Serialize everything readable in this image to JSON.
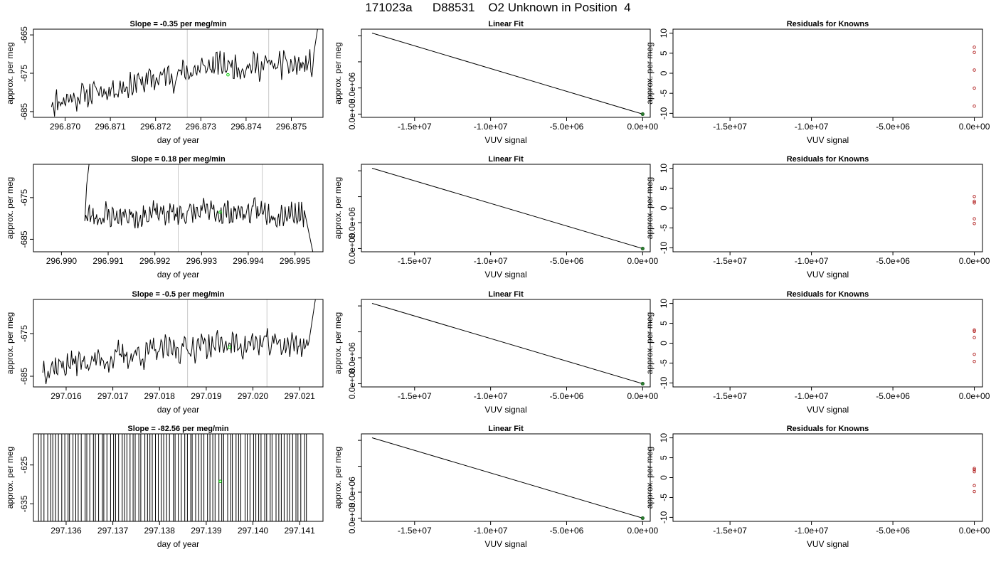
{
  "title": "171023a      D88531    O2 Unknown in Position  4",
  "colors": {
    "trace": "#000000",
    "marker": "#00cc00",
    "vline": "#c8c8c8",
    "fitline": "#000000",
    "fitpoint": "#2e7d32",
    "residual": "#b22222"
  },
  "chart_data": [
    {
      "type": "line",
      "title": "Slope =  -0.35  per meg/min",
      "xlabel": "day of year",
      "ylabel": "approx. per meg",
      "xlim": [
        296.8693,
        296.8757
      ],
      "ylim": [
        -686.5,
        -663.5
      ],
      "xticks": [
        296.87,
        296.871,
        296.872,
        296.873,
        296.874,
        296.875
      ],
      "xtick_labels": [
        "296.870",
        "296.871",
        "296.872",
        "296.873",
        "296.874",
        "296.875"
      ],
      "yticks": [
        -665,
        -675,
        -685
      ],
      "ytick_labels": [
        "-665",
        "-675",
        "-685"
      ],
      "vlines": [
        296.8727,
        296.8745
      ],
      "marker": {
        "x": 296.8736,
        "y": -675.4
      },
      "trace": {
        "x_start": 296.8697,
        "x_end": 296.8755,
        "y_from": -682.5,
        "y_to": -673,
        "noise": 2.5,
        "seed": 11,
        "n": 260,
        "tail_from": 296.8753,
        "tail_to": -662
      }
    },
    {
      "type": "line",
      "title": "Linear Fit",
      "xlabel": "VUV signal",
      "ylabel": "approx. per meg",
      "xlim": [
        -18500000,
        500000
      ],
      "ylim": [
        -1000000,
        26000000
      ],
      "xticks": [
        -15000000,
        -10000000,
        -5000000,
        0
      ],
      "xtick_labels": [
        "-1.5e+07",
        "-1.0e+07",
        "-5.0e+06",
        "0.0e+00"
      ],
      "yticks": [
        0,
        8000000,
        16000000,
        24000000
      ],
      "ytick_labels": [
        "0.0e+00",
        "8.0e+06",
        "",
        ""
      ],
      "line": {
        "x": [
          -17800000,
          0
        ],
        "y": [
          24800000,
          0
        ]
      },
      "point": {
        "x": 0,
        "y": 0
      }
    },
    {
      "type": "scatter",
      "title": "Residuals for Knowns",
      "xlabel": "VUV signal",
      "ylabel": "",
      "xlim": [
        -18500000,
        500000
      ],
      "ylim": [
        -11,
        11
      ],
      "xticks": [
        -15000000,
        -10000000,
        -5000000,
        0
      ],
      "xtick_labels": [
        "-1.5e+07",
        "-1.0e+07",
        "-5.0e+06",
        "0.0e+00"
      ],
      "yticks": [
        10,
        5,
        0,
        -5,
        -10
      ],
      "ytick_labels": [
        "10",
        "5",
        "0",
        "-5",
        "-10"
      ],
      "x": [
        0,
        0,
        0,
        0,
        0
      ],
      "y": [
        6.5,
        5.2,
        0.8,
        -3.7,
        -8.2
      ]
    },
    {
      "type": "line",
      "title": "Slope =  0.18  per meg/min",
      "xlabel": "day of year",
      "ylabel": "approx. per meg",
      "xlim": [
        296.9894,
        296.9956
      ],
      "ylim": [
        -688,
        -667
      ],
      "xticks": [
        296.99,
        296.991,
        296.992,
        296.993,
        296.994,
        296.995
      ],
      "xtick_labels": [
        "296.990",
        "296.991",
        "296.992",
        "296.993",
        "296.994",
        "296.995"
      ],
      "yticks": [
        -675,
        -685
      ],
      "ytick_labels": [
        "-675",
        "-685"
      ],
      "vlines": [
        296.9925,
        296.9943
      ],
      "marker": {
        "x": 296.9934,
        "y": -678.5
      },
      "trace": {
        "x_start": 296.9905,
        "x_end": 296.9952,
        "y_from": -679.5,
        "y_to": -678.5,
        "noise": 2.2,
        "seed": 23,
        "n": 240,
        "head_from": 296.9906,
        "head_to": -666,
        "tail_from": 296.9952,
        "tail_to": -689
      }
    },
    {
      "type": "line",
      "title": "Linear Fit",
      "xlabel": "VUV signal",
      "ylabel": "approx. per meg",
      "xlim": [
        -18500000,
        500000
      ],
      "ylim": [
        -1000000,
        26000000
      ],
      "xticks": [
        -15000000,
        -10000000,
        -5000000,
        0
      ],
      "xtick_labels": [
        "-1.5e+07",
        "-1.0e+07",
        "-5.0e+06",
        "0.0e+00"
      ],
      "yticks": [
        0,
        8000000,
        16000000,
        24000000
      ],
      "ytick_labels": [
        "0.0e+00",
        "8.0e+06",
        "",
        ""
      ],
      "line": {
        "x": [
          -17800000,
          0
        ],
        "y": [
          24800000,
          0
        ]
      },
      "point": {
        "x": 0,
        "y": 0
      }
    },
    {
      "type": "scatter",
      "title": "Residuals for Knowns",
      "xlabel": "VUV signal",
      "ylabel": "",
      "xlim": [
        -18500000,
        500000
      ],
      "ylim": [
        -11,
        11
      ],
      "xticks": [
        -15000000,
        -10000000,
        -5000000,
        0
      ],
      "xtick_labels": [
        "-1.5e+07",
        "-1.0e+07",
        "-5.0e+06",
        "0.0e+00"
      ],
      "yticks": [
        10,
        5,
        0,
        -5,
        -10
      ],
      "ytick_labels": [
        "10",
        "5",
        "0",
        "-5",
        "-10"
      ],
      "x": [
        0,
        0,
        0,
        0,
        0
      ],
      "y": [
        2.9,
        1.7,
        1.3,
        -2.7,
        -3.9
      ]
    },
    {
      "type": "line",
      "title": "Slope =  -0.5  per meg/min",
      "xlabel": "day of year",
      "ylabel": "approx. per meg",
      "xlim": [
        297.0153,
        297.0215
      ],
      "ylim": [
        -687.5,
        -667
      ],
      "xticks": [
        297.016,
        297.017,
        297.018,
        297.019,
        297.02,
        297.021
      ],
      "xtick_labels": [
        "297.016",
        "297.017",
        "297.018",
        "297.019",
        "297.020",
        "297.021"
      ],
      "yticks": [
        -675,
        -685
      ],
      "ytick_labels": [
        "-675",
        "-685"
      ],
      "vlines": [
        297.0186,
        297.0203
      ],
      "marker": {
        "x": 297.0195,
        "y": -678.2
      },
      "trace": {
        "x_start": 297.0155,
        "x_end": 297.0212,
        "y_from": -683,
        "y_to": -677.5,
        "noise": 2.3,
        "seed": 37,
        "n": 250,
        "tail_from": 297.0211,
        "tail_to": -666
      }
    },
    {
      "type": "line",
      "title": "Linear Fit",
      "xlabel": "VUV signal",
      "ylabel": "approx. per meg",
      "xlim": [
        -18500000,
        500000
      ],
      "ylim": [
        -1000000,
        26000000
      ],
      "xticks": [
        -15000000,
        -10000000,
        -5000000,
        0
      ],
      "xtick_labels": [
        "-1.5e+07",
        "-1.0e+07",
        "-5.0e+06",
        "0.0e+00"
      ],
      "yticks": [
        0,
        8000000,
        16000000,
        24000000
      ],
      "ytick_labels": [
        "0.0e+00",
        "8.0e+06",
        "",
        ""
      ],
      "line": {
        "x": [
          -17800000,
          0
        ],
        "y": [
          24800000,
          0
        ]
      },
      "point": {
        "x": 0,
        "y": 0
      }
    },
    {
      "type": "scatter",
      "title": "Residuals for Knowns",
      "xlabel": "VUV signal",
      "ylabel": "",
      "xlim": [
        -18500000,
        500000
      ],
      "ylim": [
        -11,
        11
      ],
      "xticks": [
        -15000000,
        -10000000,
        -5000000,
        0
      ],
      "xtick_labels": [
        "-1.5e+07",
        "-1.0e+07",
        "-5.0e+06",
        "0.0e+00"
      ],
      "yticks": [
        10,
        5,
        0,
        -5,
        -10
      ],
      "ytick_labels": [
        "10",
        "5",
        "0",
        "-5",
        "-10"
      ],
      "x": [
        0,
        0,
        0,
        0,
        0
      ],
      "y": [
        3.3,
        3.0,
        1.4,
        -2.8,
        -4.6
      ]
    },
    {
      "type": "line",
      "title": "Slope =  -82.56  per meg/min",
      "xlabel": "day of year",
      "ylabel": "approx. per meg",
      "xlim": [
        297.1353,
        297.1415
      ],
      "ylim": [
        -639.5,
        -617
      ],
      "xticks": [
        297.136,
        297.137,
        297.138,
        297.139,
        297.14,
        297.141
      ],
      "xtick_labels": [
        "297.136",
        "297.137",
        "297.138",
        "297.139",
        "297.140",
        "297.141"
      ],
      "yticks": [
        -625,
        -635
      ],
      "ytick_labels": [
        "-625",
        "-635"
      ],
      "vlines": [],
      "marker": {
        "x": 297.1393,
        "y": -629.2
      },
      "spikes": {
        "x_start": 297.1354,
        "x_end": 297.1412,
        "count": 95,
        "seed": 53
      }
    },
    {
      "type": "line",
      "title": "Linear Fit",
      "xlabel": "VUV signal",
      "ylabel": "approx. per meg",
      "xlim": [
        -18500000,
        500000
      ],
      "ylim": [
        -1000000,
        26000000
      ],
      "xticks": [
        -15000000,
        -10000000,
        -5000000,
        0
      ],
      "xtick_labels": [
        "-1.5e+07",
        "-1.0e+07",
        "-5.0e+06",
        "0.0e+00"
      ],
      "yticks": [
        0,
        8000000,
        16000000,
        24000000
      ],
      "ytick_labels": [
        "0.0e+00",
        "8.0e+06",
        "",
        ""
      ],
      "line": {
        "x": [
          -17800000,
          0
        ],
        "y": [
          24800000,
          0
        ]
      },
      "point": {
        "x": 0,
        "y": 0
      }
    },
    {
      "type": "scatter",
      "title": "Residuals for Knowns",
      "xlabel": "VUV signal",
      "ylabel": "",
      "xlim": [
        -18500000,
        500000
      ],
      "ylim": [
        -11,
        11
      ],
      "xticks": [
        -15000000,
        -10000000,
        -5000000,
        0
      ],
      "xtick_labels": [
        "-1.5e+07",
        "-1.0e+07",
        "-5.0e+06",
        "0.0e+00"
      ],
      "yticks": [
        10,
        5,
        0,
        -5,
        -10
      ],
      "ytick_labels": [
        "10",
        "5",
        "0",
        "-5",
        "-10"
      ],
      "x": [
        0,
        0,
        0,
        0,
        0
      ],
      "y": [
        2.3,
        2.0,
        1.5,
        -2.0,
        -3.5
      ]
    }
  ]
}
